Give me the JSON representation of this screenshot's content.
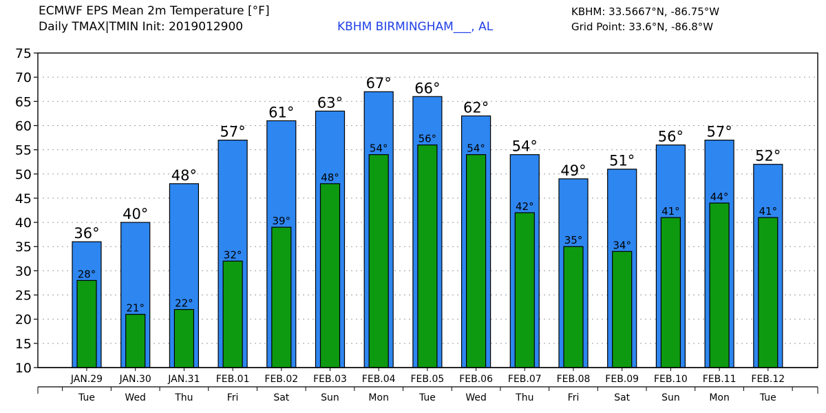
{
  "header": {
    "title": "ECMWF EPS Mean 2m Temperature [°F]",
    "subtitle": "Daily TMAX|TMIN Init: 2019012900",
    "station": "KBHM BIRMINGHAM___, AL",
    "coords": "KBHM: 33.5667°N, -86.75°W",
    "grid_point": "Grid Point: 33.6°N, -86.8°W"
  },
  "colors": {
    "tmax": "#2e86f0",
    "tmin": "#0e9a10",
    "grid": "#9a9a9a",
    "axis": "#000000"
  },
  "chart_data": {
    "type": "bar",
    "title": "ECMWF EPS Mean 2m Temperature [°F]",
    "xlabel": "",
    "ylabel": "",
    "ylim": [
      10,
      75
    ],
    "yticks": [
      10,
      15,
      20,
      25,
      30,
      35,
      40,
      45,
      50,
      55,
      60,
      65,
      70,
      75
    ],
    "grid": true,
    "categories": [
      "JAN.29",
      "JAN.30",
      "JAN.31",
      "FEB.01",
      "FEB.02",
      "FEB.03",
      "FEB.04",
      "FEB.05",
      "FEB.06",
      "FEB.07",
      "FEB.08",
      "FEB.09",
      "FEB.10",
      "FEB.11",
      "FEB.12"
    ],
    "days": [
      "Tue",
      "Wed",
      "Thu",
      "Fri",
      "Sat",
      "Sun",
      "Mon",
      "Tue",
      "Wed",
      "Thu",
      "Fri",
      "Sat",
      "Sun",
      "Mon",
      "Tue"
    ],
    "series": [
      {
        "name": "TMAX",
        "values": [
          36,
          40,
          48,
          57,
          61,
          63,
          67,
          66,
          62,
          54,
          49,
          51,
          56,
          57,
          52
        ],
        "labels": [
          "36°",
          "40°",
          "48°",
          "57°",
          "61°",
          "63°",
          "67°",
          "66°",
          "62°",
          "54°",
          "49°",
          "51°",
          "56°",
          "57°",
          "52°"
        ]
      },
      {
        "name": "TMIN",
        "values": [
          28,
          21,
          22,
          32,
          39,
          48,
          54,
          56,
          54,
          42,
          35,
          34,
          41,
          44,
          41
        ],
        "labels": [
          "28°",
          "21°",
          "22°",
          "32°",
          "39°",
          "48°",
          "54°",
          "56°",
          "54°",
          "42°",
          "35°",
          "34°",
          "41°",
          "44°",
          "41°"
        ]
      }
    ]
  }
}
